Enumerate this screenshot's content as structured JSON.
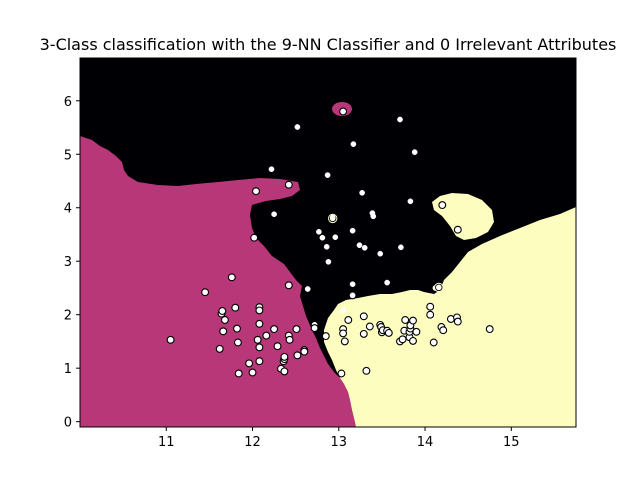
{
  "chart_data": {
    "type": "scatter",
    "title": "3-Class classification with the 9-NN Classifier and 0 Irrelevant Attributes",
    "xlabel": "",
    "ylabel": "",
    "xlim": [
      10.0,
      15.75
    ],
    "ylim": [
      -0.1,
      6.8
    ],
    "x_ticks": [
      11,
      12,
      13,
      14,
      15
    ],
    "y_ticks": [
      0,
      1,
      2,
      3,
      4,
      5,
      6
    ],
    "grid": false,
    "legend": "none",
    "colors": {
      "region_class_0": "#b73779",
      "region_class_1": "#000004",
      "region_class_2": "#fcfdbf",
      "point_edge": "#000000"
    },
    "points_class_0": [
      [
        11.05,
        1.53
      ],
      [
        11.45,
        2.42
      ],
      [
        11.62,
        1.36
      ],
      [
        11.64,
        2.02
      ],
      [
        11.65,
        2.07
      ],
      [
        11.66,
        1.69
      ],
      [
        11.68,
        1.9
      ],
      [
        11.76,
        2.7
      ],
      [
        11.8,
        2.13
      ],
      [
        11.82,
        1.74
      ],
      [
        11.83,
        1.48
      ],
      [
        11.84,
        0.9
      ],
      [
        11.96,
        1.09
      ],
      [
        12.0,
        0.92
      ],
      [
        12.02,
        3.44
      ],
      [
        12.04,
        4.31
      ],
      [
        12.06,
        1.53
      ],
      [
        12.08,
        1.13
      ],
      [
        12.08,
        1.39
      ],
      [
        12.08,
        1.83
      ],
      [
        12.08,
        2.14
      ],
      [
        12.08,
        2.08
      ],
      [
        12.16,
        1.61
      ],
      [
        12.25,
        1.73
      ],
      [
        12.29,
        1.41
      ],
      [
        12.33,
        0.99
      ],
      [
        12.36,
        1.13
      ],
      [
        12.37,
        1.17
      ],
      [
        12.37,
        0.94
      ],
      [
        12.37,
        1.21
      ],
      [
        12.42,
        1.61
      ],
      [
        12.42,
        2.55
      ],
      [
        12.42,
        4.43
      ],
      [
        12.43,
        1.53
      ],
      [
        12.51,
        1.73
      ],
      [
        12.52,
        1.24
      ],
      [
        12.6,
        1.34
      ],
      [
        12.6,
        1.31
      ],
      [
        12.72,
        1.81
      ],
      [
        12.72,
        1.75
      ],
      [
        12.85,
        1.6
      ],
      [
        13.03,
        0.9
      ],
      [
        13.05,
        5.8
      ],
      [
        13.05,
        1.73
      ],
      [
        13.05,
        1.65
      ],
      [
        13.07,
        1.5
      ],
      [
        13.11,
        1.9
      ],
      [
        13.16,
        2.36
      ],
      [
        13.29,
        1.97
      ],
      [
        13.29,
        1.64
      ]
    ],
    "points_class_1": [
      [
        12.22,
        4.72
      ],
      [
        12.25,
        3.88
      ],
      [
        12.52,
        5.51
      ],
      [
        12.64,
        2.48
      ],
      [
        12.77,
        3.55
      ],
      [
        12.81,
        3.44
      ],
      [
        12.86,
        3.27
      ],
      [
        12.87,
        4.61
      ],
      [
        12.88,
        2.99
      ],
      [
        12.93,
        3.8
      ],
      [
        12.93,
        3.82
      ],
      [
        12.96,
        3.45
      ],
      [
        13.05,
        2.08
      ],
      [
        13.16,
        2.57
      ],
      [
        13.16,
        3.57
      ],
      [
        13.17,
        5.19
      ],
      [
        13.24,
        3.3
      ],
      [
        13.27,
        4.28
      ],
      [
        13.3,
        3.25
      ],
      [
        13.39,
        3.9
      ],
      [
        13.4,
        3.84
      ],
      [
        13.48,
        3.14
      ],
      [
        13.56,
        2.6
      ],
      [
        13.71,
        5.65
      ],
      [
        13.72,
        3.26
      ],
      [
        13.83,
        4.12
      ],
      [
        13.88,
        5.04
      ]
    ],
    "points_class_2": [
      [
        13.32,
        0.95
      ],
      [
        13.36,
        1.78
      ],
      [
        13.48,
        1.81
      ],
      [
        13.49,
        1.77
      ],
      [
        13.5,
        1.67
      ],
      [
        13.51,
        1.71
      ],
      [
        13.56,
        1.7
      ],
      [
        13.58,
        1.66
      ],
      [
        13.71,
        1.5
      ],
      [
        13.74,
        1.54
      ],
      [
        13.76,
        1.7
      ],
      [
        13.77,
        1.9
      ],
      [
        13.82,
        1.58
      ],
      [
        13.82,
        1.68
      ],
      [
        13.83,
        1.74
      ],
      [
        13.83,
        1.8
      ],
      [
        13.86,
        1.51
      ],
      [
        13.86,
        1.89
      ],
      [
        13.9,
        1.68
      ],
      [
        14.06,
        2.15
      ],
      [
        14.06,
        2.0
      ],
      [
        14.1,
        1.48
      ],
      [
        14.12,
        2.5
      ],
      [
        14.16,
        2.51
      ],
      [
        14.19,
        1.77
      ],
      [
        14.2,
        4.05
      ],
      [
        14.21,
        1.71
      ],
      [
        14.3,
        1.92
      ],
      [
        14.37,
        1.95
      ],
      [
        14.38,
        1.87
      ],
      [
        14.38,
        3.59
      ],
      [
        14.75,
        1.73
      ]
    ],
    "points_on_edge": [
      [
        14.16,
        2.51
      ],
      [
        12.93,
        3.8
      ]
    ]
  }
}
